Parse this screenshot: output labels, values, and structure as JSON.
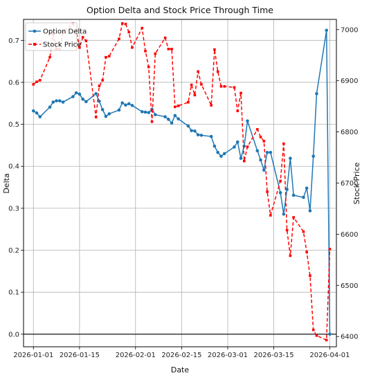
{
  "chart_data": {
    "type": "line",
    "title": "Option Delta and Stock Price Through Time",
    "xlabel": "Date",
    "ylabel_left": "Delta",
    "ylabel_right": "Stock Price",
    "x_ticks": [
      "2026-01-01",
      "2026-01-15",
      "2026-02-01",
      "2026-02-15",
      "2026-03-01",
      "2026-03-15",
      "2026-04-01"
    ],
    "xlim": [
      "2025-12-29",
      "2026-04-03"
    ],
    "ylim_left": [
      -0.03,
      0.75
    ],
    "ylim_right": [
      6380,
      7020
    ],
    "yticks_left": [
      "0.0",
      "0.1",
      "0.2",
      "0.3",
      "0.4",
      "0.5",
      "0.6",
      "0.7"
    ],
    "yticks_right": [
      "6400",
      "6500",
      "6600",
      "6700",
      "6800",
      "6900",
      "7000"
    ],
    "grid": true,
    "legend_position": "top-left",
    "reference_line": {
      "axis": "left",
      "y": 0.0,
      "color": "#000000"
    },
    "series": [
      {
        "name": "Option Delta",
        "axis": "left",
        "color": "#1f77b4",
        "style": "solid",
        "marker": "circle",
        "x": [
          "2026-01-01",
          "2026-01-02",
          "2026-01-03",
          "2026-01-06",
          "2026-01-07",
          "2026-01-08",
          "2026-01-09",
          "2026-01-10",
          "2026-01-13",
          "2026-01-14",
          "2026-01-15",
          "2026-01-16",
          "2026-01-17",
          "2026-01-20",
          "2026-01-21",
          "2026-01-22",
          "2026-01-23",
          "2026-01-24",
          "2026-01-27",
          "2026-01-28",
          "2026-01-29",
          "2026-01-30",
          "2026-01-31",
          "2026-02-03",
          "2026-02-04",
          "2026-02-05",
          "2026-02-06",
          "2026-02-07",
          "2026-02-10",
          "2026-02-11",
          "2026-02-12",
          "2026-02-13",
          "2026-02-14",
          "2026-02-17",
          "2026-02-18",
          "2026-02-19",
          "2026-02-20",
          "2026-02-21",
          "2026-02-24",
          "2026-02-25",
          "2026-02-26",
          "2026-02-27",
          "2026-02-28",
          "2026-03-03",
          "2026-03-04",
          "2026-03-05",
          "2026-03-06",
          "2026-03-07",
          "2026-03-10",
          "2026-03-11",
          "2026-03-12",
          "2026-03-13",
          "2026-03-14",
          "2026-03-17",
          "2026-03-18",
          "2026-03-19",
          "2026-03-20",
          "2026-03-21",
          "2026-03-24",
          "2026-03-25",
          "2026-03-26",
          "2026-03-27",
          "2026-03-28",
          "2026-03-31",
          "2026-04-01"
        ],
        "values": [
          0.532,
          0.527,
          0.518,
          0.541,
          0.553,
          0.556,
          0.556,
          0.553,
          0.566,
          0.575,
          0.572,
          0.56,
          0.554,
          0.573,
          0.555,
          0.535,
          0.519,
          0.525,
          0.534,
          0.551,
          0.546,
          0.549,
          0.545,
          0.53,
          0.529,
          0.528,
          0.536,
          0.523,
          0.518,
          0.512,
          0.503,
          0.521,
          0.513,
          0.496,
          0.485,
          0.484,
          0.475,
          0.474,
          0.471,
          0.448,
          0.433,
          0.424,
          0.43,
          0.446,
          0.458,
          0.419,
          0.448,
          0.508,
          0.437,
          0.415,
          0.391,
          0.433,
          0.433,
          0.337,
          0.286,
          0.345,
          0.419,
          0.331,
          0.326,
          0.348,
          0.294,
          0.424,
          0.573,
          0.724,
          0.0
        ]
      },
      {
        "name": "Stock Price",
        "axis": "right",
        "color": "#ff0000",
        "style": "dashed",
        "marker": "square",
        "x": [
          "2026-01-01",
          "2026-01-02",
          "2026-01-03",
          "2026-01-06",
          "2026-01-07",
          "2026-01-08",
          "2026-01-09",
          "2026-01-10",
          "2026-01-13",
          "2026-01-14",
          "2026-01-15",
          "2026-01-16",
          "2026-01-17",
          "2026-01-20",
          "2026-01-21",
          "2026-01-22",
          "2026-01-23",
          "2026-01-24",
          "2026-01-27",
          "2026-01-28",
          "2026-01-29",
          "2026-01-30",
          "2026-01-31",
          "2026-02-03",
          "2026-02-04",
          "2026-02-05",
          "2026-02-06",
          "2026-02-07",
          "2026-02-10",
          "2026-02-11",
          "2026-02-12",
          "2026-02-13",
          "2026-02-14",
          "2026-02-17",
          "2026-02-18",
          "2026-02-19",
          "2026-02-20",
          "2026-02-21",
          "2026-02-24",
          "2026-02-25",
          "2026-02-26",
          "2026-02-27",
          "2026-02-28",
          "2026-03-03",
          "2026-03-04",
          "2026-03-05",
          "2026-03-06",
          "2026-03-07",
          "2026-03-10",
          "2026-03-11",
          "2026-03-12",
          "2026-03-13",
          "2026-03-14",
          "2026-03-17",
          "2026-03-18",
          "2026-03-19",
          "2026-03-20",
          "2026-03-21",
          "2026-03-24",
          "2026-03-25",
          "2026-03-26",
          "2026-03-27",
          "2026-03-28",
          "2026-03-31",
          "2026-04-01"
        ],
        "values": [
          6893,
          6898,
          6901,
          6946,
          6991,
          6962,
          6961,
          6995,
          7012,
          6998,
          6965,
          6985,
          6978,
          6829,
          6890,
          6901,
          6946,
          6948,
          6982,
          7012,
          7011,
          6995,
          6965,
          7003,
          6958,
          6927,
          6820,
          6953,
          6984,
          6962,
          6962,
          6849,
          6851,
          6858,
          6892,
          6872,
          6918,
          6893,
          6852,
          6961,
          6918,
          6889,
          6889,
          6887,
          6841,
          6876,
          6743,
          6771,
          6805,
          6790,
          6782,
          6683,
          6637,
          6704,
          6777,
          6608,
          6558,
          6633,
          6605,
          6565,
          6519,
          6413,
          6402,
          6393,
          6571
        ]
      }
    ]
  }
}
